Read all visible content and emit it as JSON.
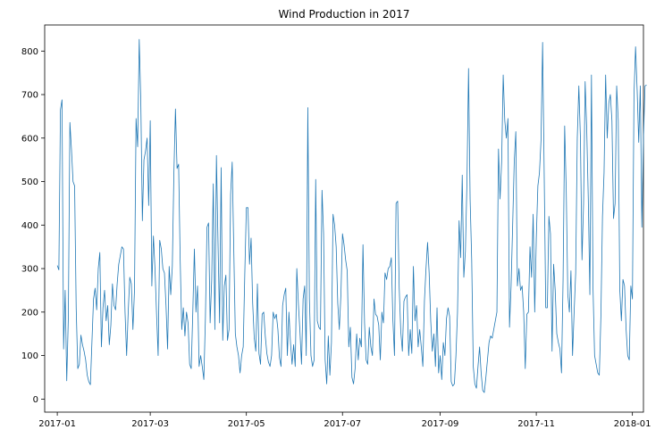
{
  "chart_data": {
    "type": "line",
    "title": "Wind Production in 2017",
    "xlabel": "",
    "ylabel": "",
    "x_range": [
      "2016-12-24",
      "2018-01-08"
    ],
    "ylim": [
      -30,
      860
    ],
    "x_ticks": [
      "2017-01",
      "2017-03",
      "2017-05",
      "2017-07",
      "2017-09",
      "2017-11",
      "2018-01"
    ],
    "y_ticks": [
      0,
      100,
      200,
      300,
      400,
      500,
      600,
      700,
      800
    ],
    "grid": false,
    "line_color": "#1f77b4",
    "series": [
      {
        "start_date": "2017-01-01",
        "step_days": 1,
        "values": [
          307,
          297,
          665,
          688,
          115,
          250,
          42,
          186,
          636,
          574,
          500,
          490,
          208,
          70,
          80,
          147,
          125,
          110,
          90,
          55,
          40,
          33,
          132,
          230,
          255,
          205,
          300,
          337,
          120,
          210,
          250,
          180,
          215,
          125,
          170,
          265,
          215,
          205,
          265,
          310,
          330,
          350,
          345,
          200,
          100,
          200,
          280,
          265,
          160,
          250,
          645,
          580,
          827,
          685,
          410,
          550,
          570,
          600,
          445,
          640,
          260,
          375,
          300,
          195,
          100,
          365,
          345,
          300,
          290,
          215,
          115,
          305,
          240,
          305,
          520,
          667,
          530,
          540,
          320,
          160,
          210,
          145,
          200,
          175,
          80,
          70,
          200,
          345,
          200,
          260,
          75,
          100,
          75,
          45,
          185,
          395,
          405,
          175,
          275,
          495,
          160,
          560,
          360,
          175,
          532,
          135,
          260,
          285,
          135,
          160,
          470,
          545,
          345,
          150,
          120,
          100,
          60,
          100,
          120,
          290,
          440,
          440,
          310,
          370,
          220,
          140,
          110,
          265,
          105,
          80,
          195,
          200,
          145,
          105,
          85,
          75,
          100,
          200,
          185,
          195,
          160,
          95,
          75,
          215,
          240,
          255,
          100,
          200,
          130,
          80,
          125,
          75,
          300,
          220,
          155,
          80,
          230,
          260,
          100,
          670,
          230,
          100,
          75,
          90,
          505,
          180,
          165,
          160,
          480,
          380,
          90,
          35,
          145,
          55,
          130,
          425,
          400,
          350,
          220,
          160,
          240,
          380,
          355,
          320,
          295,
          120,
          165,
          50,
          35,
          70,
          150,
          90,
          140,
          120,
          355,
          175,
          90,
          80,
          165,
          120,
          100,
          230,
          195,
          190,
          170,
          90,
          200,
          175,
          290,
          275,
          300,
          305,
          325,
          180,
          100,
          450,
          455,
          255,
          155,
          110,
          225,
          235,
          240,
          100,
          160,
          105,
          305,
          180,
          215,
          120,
          160,
          120,
          75,
          225,
          300,
          360,
          290,
          180,
          110,
          150,
          75,
          210,
          60,
          100,
          45,
          130,
          100,
          185,
          210,
          190,
          40,
          30,
          35,
          100,
          200,
          410,
          325,
          515,
          280,
          340,
          500,
          760,
          460,
          320,
          75,
          35,
          25,
          75,
          120,
          60,
          20,
          15,
          50,
          90,
          130,
          145,
          140,
          160,
          180,
          200,
          575,
          460,
          545,
          745,
          640,
          600,
          645,
          165,
          260,
          400,
          545,
          615,
          260,
          300,
          250,
          260,
          200,
          70,
          195,
          200,
          350,
          280,
          425,
          200,
          370,
          490,
          520,
          595,
          820,
          520,
          210,
          210,
          420,
          380,
          110,
          310,
          250,
          150,
          130,
          115,
          60,
          275,
          628,
          480,
          240,
          200,
          295,
          100,
          200,
          290,
          600,
          720,
          600,
          320,
          450,
          730,
          620,
          460,
          240,
          745,
          255,
          100,
          80,
          60,
          55,
          190,
          420,
          520,
          745,
          600,
          680,
          700,
          640,
          415,
          450,
          720,
          640,
          250,
          180,
          275,
          260,
          160,
          100,
          90,
          260,
          230,
          700,
          810,
          710,
          590,
          720,
          395,
          600,
          720,
          722
        ]
      }
    ]
  }
}
